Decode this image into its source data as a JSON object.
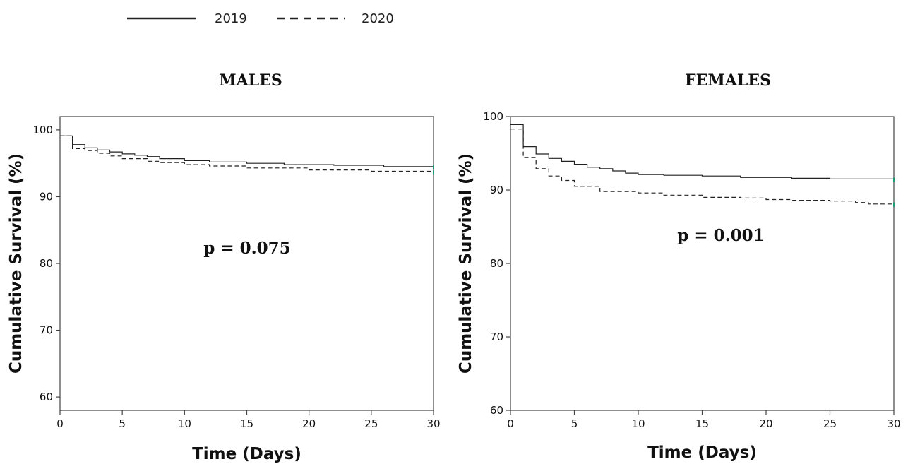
{
  "legend": {
    "items": [
      {
        "label": "2019",
        "style": "solid"
      },
      {
        "label": "2020",
        "style": "dashed"
      }
    ]
  },
  "colors": {
    "line": "#222222",
    "censor_mark": "#1a9e77",
    "frame": "#444444"
  },
  "chart_data": [
    {
      "type": "line",
      "subtype": "kaplan-meier step",
      "title": "MALES",
      "annotation": "p = 0.075",
      "xlabel": "Time (Days)",
      "ylabel": "Cumulative Survival (%)",
      "xlim": [
        0,
        30
      ],
      "ylim": [
        58,
        102
      ],
      "xticks": [
        0,
        5,
        10,
        15,
        20,
        25,
        30
      ],
      "yticks": [
        60,
        70,
        80,
        90,
        100
      ],
      "grid": false,
      "series": [
        {
          "name": "2019",
          "dash": "solid",
          "x": [
            0,
            1,
            2,
            3,
            4,
            5,
            6,
            7,
            8,
            10,
            12,
            15,
            18,
            22,
            26,
            30
          ],
          "y": [
            99.1,
            97.8,
            97.3,
            97.0,
            96.7,
            96.4,
            96.2,
            96.0,
            95.7,
            95.4,
            95.2,
            95.0,
            94.8,
            94.7,
            94.5,
            94.4
          ]
        },
        {
          "name": "2020",
          "dash": "dashed",
          "x": [
            0,
            1,
            2,
            3,
            4,
            5,
            7,
            8,
            10,
            12,
            15,
            20,
            25,
            30
          ],
          "y": [
            99.1,
            97.2,
            96.9,
            96.5,
            96.1,
            95.7,
            95.3,
            95.1,
            94.8,
            94.6,
            94.3,
            94.0,
            93.8,
            93.6
          ]
        }
      ]
    },
    {
      "type": "line",
      "subtype": "kaplan-meier step",
      "title": "FEMALES",
      "annotation": "p = 0.001",
      "xlabel": "Time (Days)",
      "ylabel": "Cumulative Survival (%)",
      "xlim": [
        0,
        30
      ],
      "ylim": [
        60,
        100
      ],
      "xticks": [
        0,
        5,
        10,
        15,
        20,
        25,
        30
      ],
      "yticks": [
        60,
        70,
        80,
        90,
        100
      ],
      "grid": false,
      "series": [
        {
          "name": "2019",
          "dash": "solid",
          "x": [
            0,
            1,
            2,
            3,
            4,
            5,
            6,
            7,
            8,
            9,
            10,
            12,
            15,
            18,
            22,
            25,
            30
          ],
          "y": [
            98.9,
            95.9,
            94.9,
            94.3,
            93.9,
            93.5,
            93.1,
            92.9,
            92.6,
            92.3,
            92.1,
            92.0,
            91.9,
            91.7,
            91.6,
            91.5,
            91.4
          ]
        },
        {
          "name": "2020",
          "dash": "dashed",
          "x": [
            0,
            1,
            2,
            3,
            4,
            5,
            7,
            10,
            12,
            15,
            18,
            20,
            22,
            25,
            27,
            28,
            30
          ],
          "y": [
            98.3,
            94.4,
            92.9,
            91.9,
            91.3,
            90.5,
            89.8,
            89.6,
            89.3,
            89.0,
            88.9,
            88.7,
            88.6,
            88.5,
            88.3,
            88.1,
            88.0
          ]
        }
      ]
    }
  ]
}
